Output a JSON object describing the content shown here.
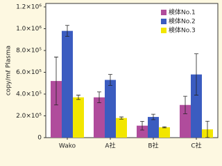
{
  "chart_data": {
    "type": "bar",
    "y_label": "copy/mℓ Plasma",
    "categories": [
      "Wako",
      "A社",
      "B社",
      "C社"
    ],
    "series": [
      {
        "name": "検体No.1",
        "color": "#b04c9c",
        "values": [
          520000,
          370000,
          110000,
          300000
        ],
        "errors": [
          220000,
          50000,
          40000,
          80000
        ]
      },
      {
        "name": "検体No.2",
        "color": "#3b5cc0",
        "values": [
          980000,
          530000,
          190000,
          580000
        ],
        "errors": [
          50000,
          50000,
          25000,
          190000
        ]
      },
      {
        "name": "検体No.3",
        "color": "#f2e600",
        "values": [
          370000,
          180000,
          95000,
          76000
        ],
        "errors": [
          20000,
          10000,
          5000,
          75000
        ]
      }
    ],
    "ylim": [
      0,
      1200000
    ],
    "yticks": [
      0,
      {
        "value": 200000,
        "label": "2.0×10⁵"
      },
      {
        "value": 400000,
        "label": "4.0×10⁵"
      },
      {
        "value": 600000,
        "label": "6.0×10⁵"
      },
      {
        "value": 800000,
        "label": "8.0×10⁵"
      },
      {
        "value": 1000000,
        "label": "1.0×10⁶"
      },
      {
        "value": 1200000,
        "label": "1.2×10⁶"
      }
    ],
    "legend": "upper right",
    "grid": false
  }
}
